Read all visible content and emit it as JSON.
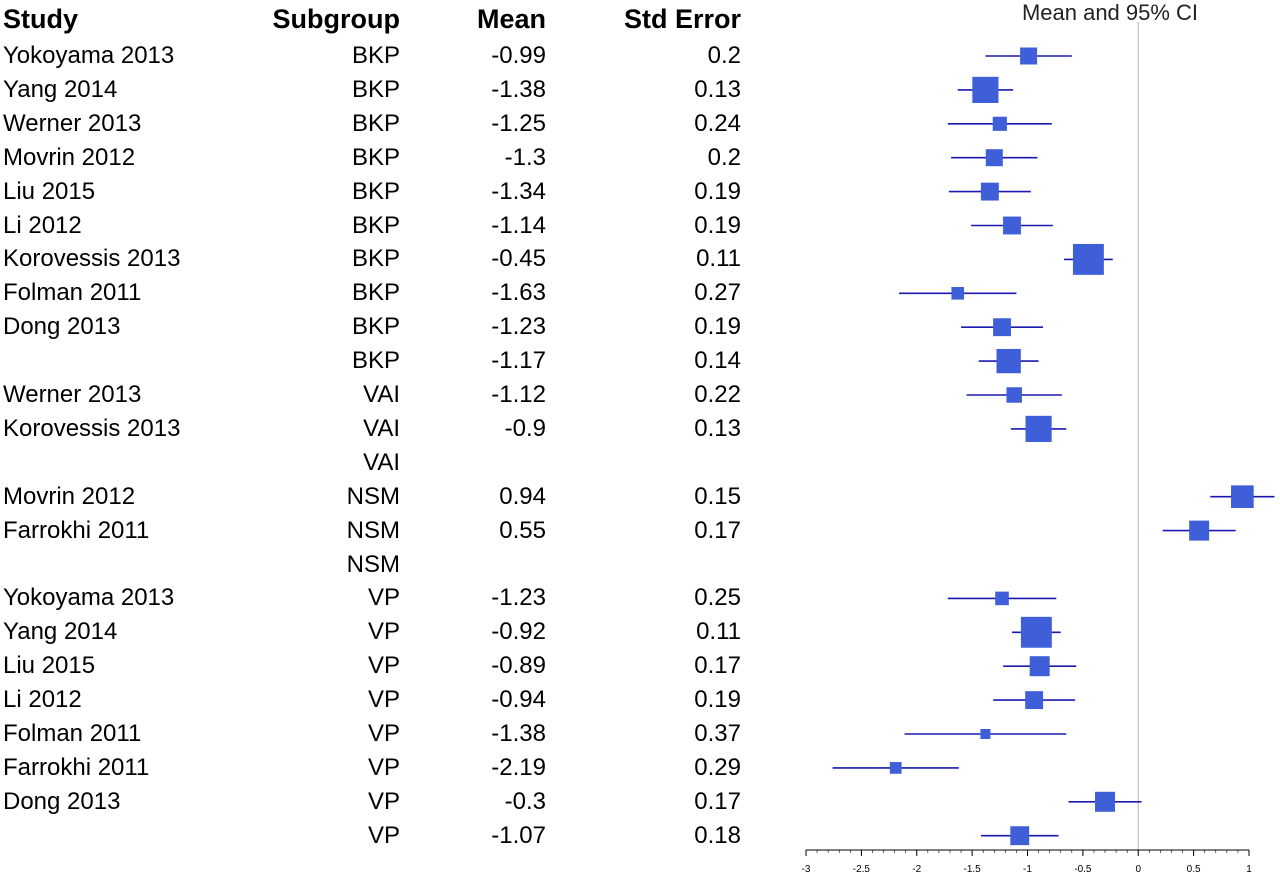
{
  "chart_data": {
    "type": "forest",
    "columns": [
      "Study",
      "Subgroup",
      "Mean",
      "Std Error"
    ],
    "plot_title": "Mean and 95% CI",
    "rows": [
      {
        "study": "Yokoyama 2013",
        "subgroup": "BKP",
        "mean": "-0.99",
        "se": "0.2",
        "value": -0.99,
        "lower": -1.38,
        "upper": -0.6
      },
      {
        "study": "Yang 2014",
        "subgroup": "BKP",
        "mean": "-1.38",
        "se": "0.13",
        "value": -1.38,
        "lower": -1.63,
        "upper": -1.13
      },
      {
        "study": "Werner 2013",
        "subgroup": "BKP",
        "mean": "-1.25",
        "se": "0.24",
        "value": -1.25,
        "lower": -1.72,
        "upper": -0.78
      },
      {
        "study": "Movrin 2012",
        "subgroup": "BKP",
        "mean": "-1.3",
        "se": "0.2",
        "value": -1.3,
        "lower": -1.69,
        "upper": -0.91
      },
      {
        "study": "Liu 2015",
        "subgroup": "BKP",
        "mean": "-1.34",
        "se": "0.19",
        "value": -1.34,
        "lower": -1.71,
        "upper": -0.97
      },
      {
        "study": "Li 2012",
        "subgroup": "BKP",
        "mean": "-1.14",
        "se": "0.19",
        "value": -1.14,
        "lower": -1.51,
        "upper": -0.77
      },
      {
        "study": "Korovessis 2013",
        "subgroup": "BKP",
        "mean": "-0.45",
        "se": "0.11",
        "value": -0.45,
        "lower": -0.67,
        "upper": -0.23
      },
      {
        "study": "Folman 2011",
        "subgroup": "BKP",
        "mean": "-1.63",
        "se": "0.27",
        "value": -1.63,
        "lower": -2.16,
        "upper": -1.1
      },
      {
        "study": "Dong 2013",
        "subgroup": "BKP",
        "mean": "-1.23",
        "se": "0.19",
        "value": -1.23,
        "lower": -1.6,
        "upper": -0.86
      },
      {
        "study": "",
        "subgroup": "BKP",
        "mean": "-1.17",
        "se": "0.14",
        "value": -1.17,
        "lower": -1.44,
        "upper": -0.9
      },
      {
        "study": "Werner 2013",
        "subgroup": "VAI",
        "mean": "-1.12",
        "se": "0.22",
        "value": -1.12,
        "lower": -1.55,
        "upper": -0.69
      },
      {
        "study": "Korovessis 2013",
        "subgroup": "VAI",
        "mean": "-0.9",
        "se": "0.13",
        "value": -0.9,
        "lower": -1.15,
        "upper": -0.65
      },
      {
        "study": "",
        "subgroup": "VAI",
        "mean": "",
        "se": "",
        "value": null,
        "lower": null,
        "upper": null
      },
      {
        "study": "Movrin 2012",
        "subgroup": "NSM",
        "mean": "0.94",
        "se": "0.15",
        "value": 0.94,
        "lower": 0.65,
        "upper": 1.23
      },
      {
        "study": "Farrokhi 2011",
        "subgroup": "NSM",
        "mean": "0.55",
        "se": "0.17",
        "value": 0.55,
        "lower": 0.22,
        "upper": 0.88
      },
      {
        "study": "",
        "subgroup": "NSM",
        "mean": "",
        "se": "",
        "value": null,
        "lower": null,
        "upper": null
      },
      {
        "study": "Yokoyama 2013",
        "subgroup": "VP",
        "mean": "-1.23",
        "se": "0.25",
        "value": -1.23,
        "lower": -1.72,
        "upper": -0.74
      },
      {
        "study": "Yang 2014",
        "subgroup": "VP",
        "mean": "-0.92",
        "se": "0.11",
        "value": -0.92,
        "lower": -1.14,
        "upper": -0.7
      },
      {
        "study": "Liu 2015",
        "subgroup": "VP",
        "mean": "-0.89",
        "se": "0.17",
        "value": -0.89,
        "lower": -1.22,
        "upper": -0.56
      },
      {
        "study": "Li 2012",
        "subgroup": "VP",
        "mean": "-0.94",
        "se": "0.19",
        "value": -0.94,
        "lower": -1.31,
        "upper": -0.57
      },
      {
        "study": "Folman 2011",
        "subgroup": "VP",
        "mean": "-1.38",
        "se": "0.37",
        "value": -1.38,
        "lower": -2.11,
        "upper": -0.65
      },
      {
        "study": "Farrokhi 2011",
        "subgroup": "VP",
        "mean": "-2.19",
        "se": "0.29",
        "value": -2.19,
        "lower": -2.76,
        "upper": -1.62
      },
      {
        "study": "Dong 2013",
        "subgroup": "VP",
        "mean": "-0.3",
        "se": "0.17",
        "value": -0.3,
        "lower": -0.63,
        "upper": 0.03
      },
      {
        "study": "",
        "subgroup": "VP",
        "mean": "-1.07",
        "se": "0.18",
        "value": -1.07,
        "lower": -1.42,
        "upper": -0.72
      }
    ],
    "xlim": [
      -3,
      1
    ],
    "xticks": [
      -3,
      -2.5,
      -2,
      -1.5,
      -1,
      -0.5,
      0,
      0.5,
      1
    ],
    "xtick_labels": [
      "-3",
      "-2.5",
      "-2",
      "-1.5",
      "-1",
      "-0.5",
      "0",
      "0.5",
      "1"
    ],
    "reference_line": 0,
    "colors": {
      "marker": "#3f5fd9",
      "line": "#1a1ab0",
      "reference": "#bdbdbd",
      "axis": "#000000"
    }
  }
}
